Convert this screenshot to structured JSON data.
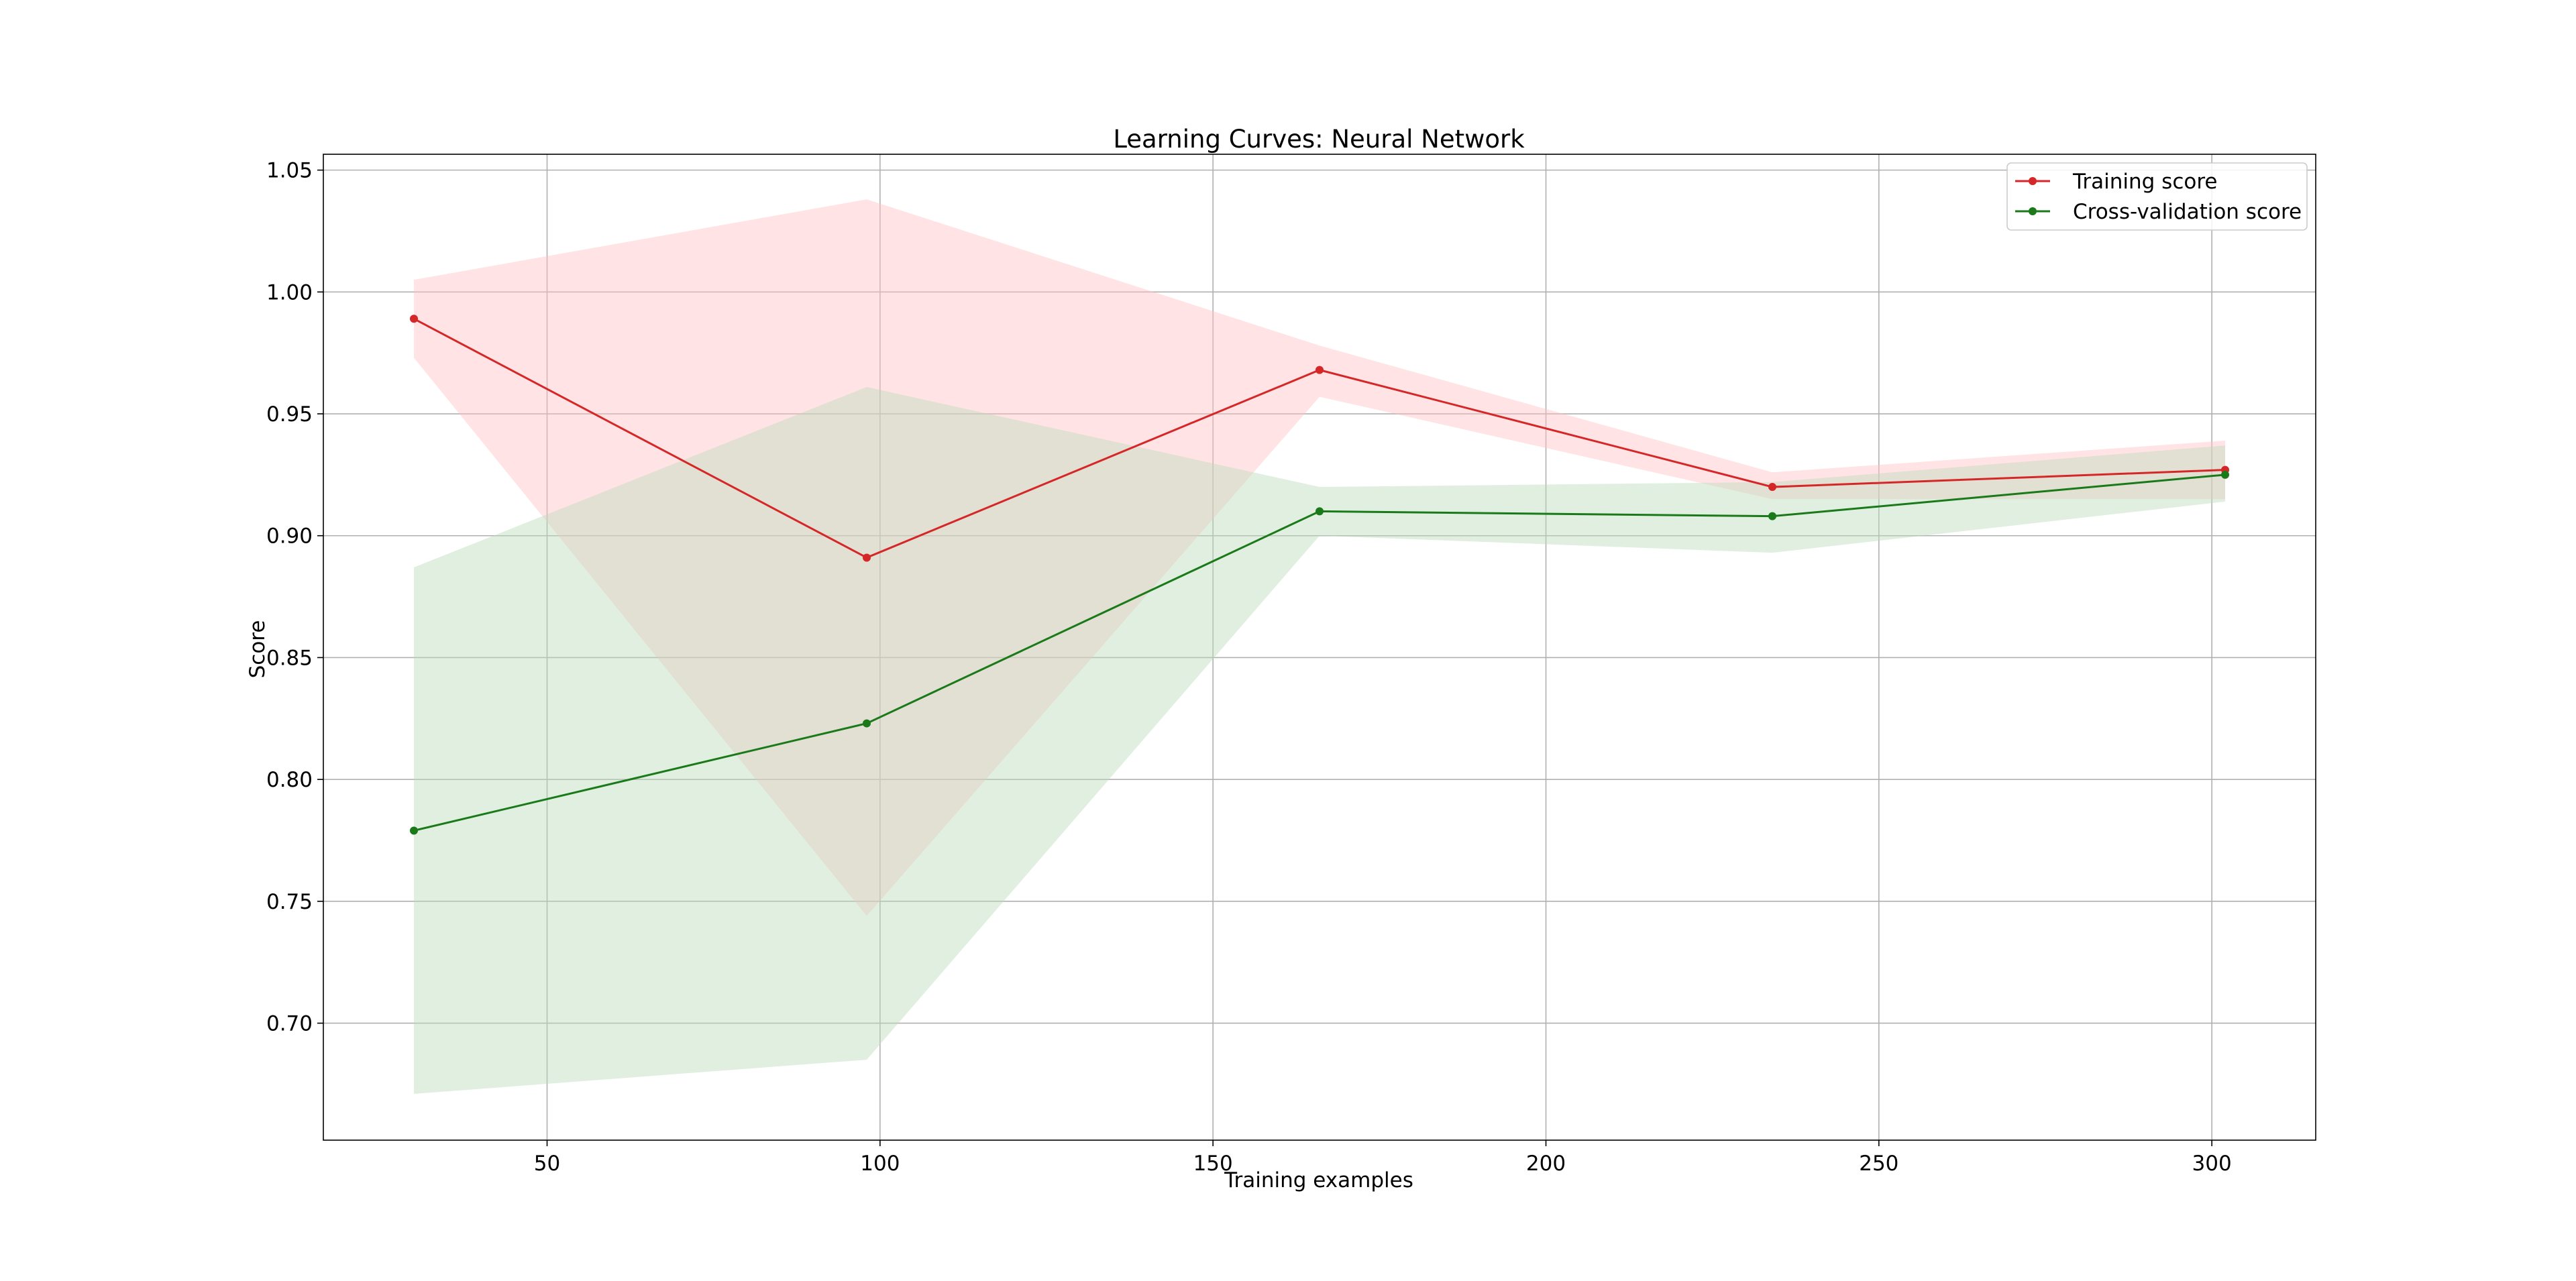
{
  "chart_data": {
    "type": "line",
    "title": "Learning Curves: Neural Network",
    "xlabel": "Training examples",
    "ylabel": "Score",
    "xlim": [
      16.4,
      315.6
    ],
    "ylim": [
      0.652,
      1.0565
    ],
    "xticks": [
      50,
      100,
      150,
      200,
      250,
      300
    ],
    "yticks": [
      0.7,
      0.75,
      0.8,
      0.85,
      0.9,
      0.95,
      1.0,
      1.05
    ],
    "grid": true,
    "legend_position": "top-right",
    "x": [
      30,
      98,
      166,
      234,
      302
    ],
    "series": [
      {
        "name": "Training score",
        "color": "#d62728",
        "band_color": "#ffc0c6",
        "values": [
          0.989,
          0.891,
          0.968,
          0.92,
          0.927
        ],
        "band_upper": [
          1.005,
          1.038,
          0.978,
          0.926,
          0.939
        ],
        "band_lower": [
          0.973,
          0.744,
          0.957,
          0.915,
          0.915
        ]
      },
      {
        "name": "Cross-validation score",
        "color": "#1a7a1a",
        "band_color": "#bcdcbc",
        "values": [
          0.779,
          0.823,
          0.91,
          0.908,
          0.925
        ],
        "band_upper": [
          0.887,
          0.961,
          0.92,
          0.922,
          0.937
        ],
        "band_lower": [
          0.671,
          0.685,
          0.9,
          0.893,
          0.914
        ]
      }
    ]
  }
}
